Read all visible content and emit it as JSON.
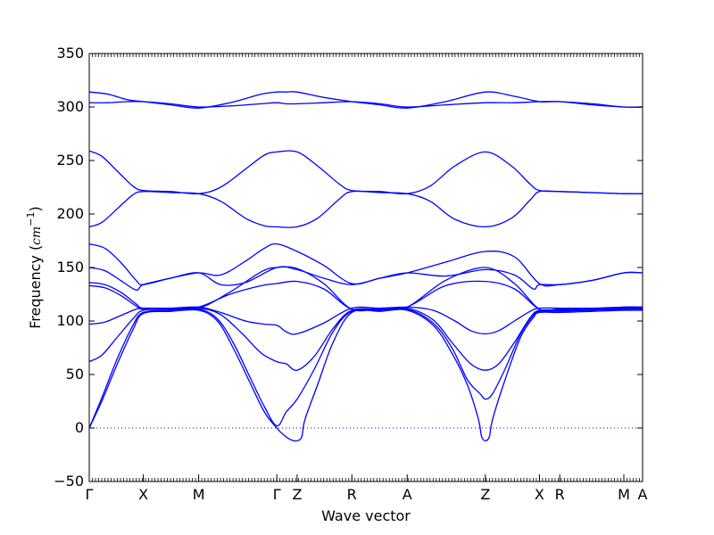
{
  "chart_data": {
    "type": "line",
    "xlabel": "Wave vector",
    "ylabel": {
      "prefix": "Frequency (",
      "unit_base": "cm",
      "unit_exp": "−1",
      "suffix": ")"
    },
    "ylim": [
      -50,
      350
    ],
    "yticks": [
      -50,
      0,
      50,
      100,
      150,
      200,
      250,
      300,
      350
    ],
    "xlim": [
      0,
      17.7
    ],
    "xticks": [
      {
        "x": 0.0,
        "label": "Γ"
      },
      {
        "x": 1.73,
        "label": "X"
      },
      {
        "x": 3.5,
        "label": "M"
      },
      {
        "x": 6.0,
        "label": "Γ"
      },
      {
        "x": 6.65,
        "label": "Z"
      },
      {
        "x": 8.4,
        "label": "R"
      },
      {
        "x": 10.17,
        "label": "A"
      },
      {
        "x": 12.67,
        "label": "Z"
      },
      {
        "x": 14.4,
        "label": "X"
      },
      {
        "x": 15.05,
        "label": "R"
      },
      {
        "x": 17.1,
        "label": "M"
      },
      {
        "x": 17.7,
        "label": "A"
      }
    ],
    "zero_line": {
      "y": 0,
      "style": "dotted"
    },
    "grid": false,
    "legend": "none",
    "series_color": "#0000ff",
    "series": [
      {
        "x": [
          0,
          0.6,
          1.2,
          1.73,
          2.6,
          3.5,
          4.5,
          5.5,
          6.0,
          6.3,
          6.65,
          7.5,
          8.4,
          9.3,
          10.17,
          11.4,
          12.67,
          13.6,
          14.4,
          15.05,
          16.1,
          17.1,
          17.7
        ],
        "y": [
          314,
          312,
          307,
          305,
          302,
          299,
          304,
          312,
          314,
          314,
          314,
          309,
          305,
          302,
          299,
          305,
          314,
          310,
          305,
          305,
          302,
          300,
          300
        ]
      },
      {
        "x": [
          0,
          0.6,
          1.2,
          1.73,
          2.6,
          3.5,
          4.5,
          5.5,
          6.0,
          6.3,
          6.65,
          7.5,
          8.4,
          9.3,
          10.17,
          11.4,
          12.67,
          13.6,
          14.4,
          15.05,
          16.1,
          17.1,
          17.7
        ],
        "y": [
          304,
          304,
          305,
          305,
          303,
          300,
          301,
          303,
          304,
          303,
          303,
          304,
          305,
          303,
          300,
          302,
          304,
          304,
          305,
          305,
          303,
          300,
          300
        ]
      },
      {
        "x": [
          0,
          0.4,
          0.9,
          1.4,
          1.73,
          2.6,
          3.5,
          4.2,
          5.0,
          5.6,
          6.0,
          6.65,
          7.3,
          8.0,
          8.4,
          9.3,
          10.17,
          10.9,
          11.7,
          12.67,
          13.5,
          14.1,
          14.4,
          15.05,
          16.1,
          17.1,
          17.7
        ],
        "y": [
          259,
          254,
          240,
          226,
          222,
          221,
          219,
          225,
          242,
          255,
          258,
          258,
          245,
          228,
          222,
          221,
          219,
          226,
          245,
          258,
          245,
          228,
          222,
          221,
          220,
          219,
          219
        ]
      },
      {
        "x": [
          0,
          0.4,
          0.9,
          1.4,
          1.73,
          2.6,
          3.5,
          4.2,
          5.0,
          5.6,
          6.0,
          6.65,
          7.3,
          8.0,
          8.4,
          9.3,
          10.17,
          10.9,
          11.7,
          12.67,
          13.5,
          14.1,
          14.4,
          15.05,
          16.1,
          17.1,
          17.7
        ],
        "y": [
          188,
          192,
          205,
          218,
          221,
          220,
          219,
          212,
          196,
          189,
          188,
          188,
          196,
          214,
          221,
          220,
          219,
          212,
          195,
          188,
          196,
          213,
          221,
          221,
          220,
          219,
          219
        ]
      },
      {
        "x": [
          0,
          0.5,
          1.0,
          1.5,
          1.73,
          2.6,
          3.5,
          4.2,
          5.0,
          5.6,
          6.0,
          6.65,
          7.5,
          8.4,
          9.3,
          10.17,
          11.4,
          12.67,
          13.6,
          14.4,
          15.05,
          16.1,
          17.1,
          17.7
        ],
        "y": [
          172,
          168,
          155,
          138,
          134,
          140,
          145,
          143,
          156,
          168,
          172,
          165,
          152,
          135,
          140,
          145,
          155,
          165,
          160,
          135,
          134,
          138,
          145,
          145
        ]
      },
      {
        "x": [
          0,
          0.5,
          1.0,
          1.5,
          1.73,
          2.6,
          3.5,
          4.2,
          5.0,
          6.0,
          6.65,
          7.5,
          8.4,
          9.3,
          10.17,
          11.4,
          12.67,
          13.6,
          14.2,
          14.4,
          15.05,
          16.1,
          17.1,
          17.7
        ],
        "y": [
          150,
          147,
          138,
          129,
          134,
          140,
          145,
          134,
          136,
          150,
          148,
          140,
          134,
          140,
          145,
          142,
          148,
          143,
          130,
          134,
          134,
          138,
          145,
          145
        ]
      },
      {
        "x": [
          0,
          0.5,
          1.0,
          1.5,
          1.73,
          2.6,
          3.5,
          4.5,
          5.5,
          6.0,
          6.65,
          7.5,
          8.4,
          9.3,
          10.17,
          11.4,
          12.67,
          13.6,
          14.4,
          15.05,
          16.1,
          17.1,
          17.7
        ],
        "y": [
          136,
          134,
          127,
          116,
          112,
          112,
          112,
          127,
          146,
          150,
          149,
          135,
          111,
          112,
          113,
          138,
          150,
          135,
          111,
          111,
          111,
          113,
          113
        ]
      },
      {
        "x": [
          0,
          0.5,
          1.0,
          1.5,
          1.73,
          2.6,
          3.5,
          4.5,
          5.5,
          6.0,
          6.65,
          7.5,
          8.4,
          9.3,
          10.17,
          11.4,
          12.67,
          13.6,
          14.4,
          15.05,
          16.1,
          17.1,
          17.7
        ],
        "y": [
          133,
          131,
          124,
          114,
          111,
          112,
          113,
          125,
          133,
          135,
          137,
          130,
          111,
          112,
          113,
          133,
          137,
          130,
          111,
          111,
          111,
          112,
          112
        ]
      },
      {
        "x": [
          0,
          0.5,
          1.0,
          1.5,
          1.73,
          2.6,
          3.5,
          4.2,
          5.0,
          5.6,
          6.0,
          6.3,
          6.65,
          7.5,
          8.4,
          9.3,
          10.17,
          11.0,
          11.7,
          12.2,
          12.67,
          13.1,
          13.6,
          14.1,
          14.4,
          15.05,
          16.1,
          17.1,
          17.7
        ],
        "y": [
          97,
          99,
          105,
          111,
          112,
          112,
          113,
          108,
          100,
          97,
          96,
          90,
          88,
          98,
          112,
          112,
          113,
          110,
          100,
          91,
          88,
          91,
          100,
          109,
          112,
          112,
          112,
          113,
          113
        ]
      },
      {
        "x": [
          0,
          0.4,
          0.9,
          1.4,
          1.73,
          2.6,
          3.5,
          4.2,
          4.9,
          5.5,
          6.0,
          6.3,
          6.65,
          7.2,
          7.8,
          8.4,
          9.3,
          10.17,
          11.0,
          11.6,
          12.2,
          12.67,
          13.1,
          13.6,
          14.1,
          14.4,
          15.05,
          16.1,
          17.1,
          17.7
        ],
        "y": [
          62,
          68,
          85,
          102,
          110,
          111,
          112,
          106,
          88,
          70,
          62,
          60,
          54,
          67,
          93,
          110,
          111,
          112,
          101,
          80,
          60,
          54,
          60,
          80,
          103,
          110,
          110,
          111,
          112,
          112
        ]
      },
      {
        "x": [
          0,
          0.4,
          0.9,
          1.4,
          1.73,
          2.6,
          3.5,
          4.1,
          4.6,
          5.1,
          5.6,
          6.0,
          6.3,
          6.65,
          7.2,
          7.8,
          8.4,
          9.3,
          10.17,
          11.0,
          11.6,
          12.1,
          12.5,
          12.67,
          12.9,
          13.3,
          13.8,
          14.2,
          14.4,
          15.05,
          16.1,
          17.1,
          17.7
        ],
        "y": [
          0,
          28,
          65,
          96,
          108,
          110,
          111,
          102,
          80,
          50,
          20,
          2,
          15,
          27,
          55,
          90,
          109,
          110,
          111,
          98,
          75,
          45,
          32,
          27,
          32,
          55,
          88,
          105,
          109,
          109,
          110,
          111,
          111
        ]
      },
      {
        "x": [
          0,
          0.4,
          0.9,
          1.4,
          1.73,
          2.6,
          3.5,
          4.1,
          4.6,
          5.1,
          5.6,
          6.0,
          6.2,
          6.45,
          6.65,
          6.8,
          6.9,
          7.3,
          7.8,
          8.4,
          9.3,
          10.17,
          11.0,
          11.6,
          12.1,
          12.45,
          12.55,
          12.67,
          12.8,
          12.9,
          13.3,
          13.8,
          14.2,
          14.4,
          15.05,
          16.1,
          17.1,
          17.7
        ],
        "y": [
          0,
          25,
          60,
          92,
          107,
          109,
          110,
          100,
          75,
          45,
          15,
          0,
          -6,
          -11,
          -12,
          -8,
          8,
          40,
          80,
          108,
          109,
          110,
          96,
          70,
          40,
          8,
          -8,
          -12,
          -8,
          8,
          45,
          85,
          103,
          108,
          108,
          109,
          110,
          110
        ]
      }
    ]
  }
}
